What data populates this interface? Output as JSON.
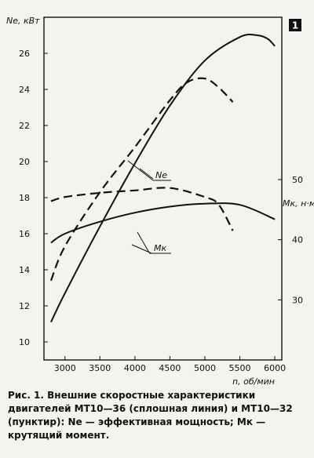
{
  "figure_number": "1",
  "caption": "Рис. 1. Внешние скоростные характеристики двигателей МТ10—36 (сплошная линия) и МТ10—32 (пунктир): Ne — эффективная мощность; Мк — крутящий момент.",
  "chart_data": {
    "type": "line",
    "title": "",
    "xlabel": "n, об/мин",
    "ylabel": "Ne, кВт",
    "y2label": "Мк, н·м",
    "xlim": [
      2700,
      6100
    ],
    "ylim": [
      9,
      28
    ],
    "y2lim": [
      20,
      77
    ],
    "x_ticks": [
      3000,
      3500,
      4000,
      4500,
      5000,
      5500,
      6000
    ],
    "y_ticks": [
      10,
      12,
      14,
      16,
      18,
      20,
      22,
      24,
      26
    ],
    "y2_ticks": [
      30,
      40,
      50
    ],
    "grid": false,
    "legend": "none",
    "series": [
      {
        "engine": "МТ10—36",
        "quantity": "Ne",
        "axis": "left",
        "style": "solid",
        "x": [
          2800,
          3000,
          3500,
          4000,
          4500,
          5000,
          5500,
          5750,
          5900,
          6000
        ],
        "y": [
          11.1,
          12.7,
          16.4,
          19.9,
          23.1,
          25.6,
          26.9,
          27.0,
          26.8,
          26.4
        ]
      },
      {
        "engine": "МТ10—32",
        "quantity": "Ne",
        "axis": "left",
        "style": "dashed",
        "x": [
          2800,
          3000,
          3500,
          4000,
          4500,
          4750,
          5000,
          5200,
          5400
        ],
        "y": [
          13.4,
          15.3,
          18.3,
          20.8,
          23.4,
          24.4,
          24.6,
          24.1,
          23.3
        ]
      },
      {
        "engine": "МТ10—36",
        "quantity": "Мк",
        "axis": "right",
        "style": "solid",
        "x": [
          2800,
          3000,
          3500,
          4000,
          4500,
          5000,
          5500,
          6000
        ],
        "y": [
          39.5,
          41.0,
          43.0,
          44.5,
          45.5,
          46.0,
          45.8,
          43.4
        ]
      },
      {
        "engine": "МТ10—32",
        "quantity": "Мк",
        "axis": "right",
        "style": "dashed",
        "x": [
          2800,
          3000,
          3500,
          4000,
          4500,
          5000,
          5200,
          5400
        ],
        "y": [
          46.4,
          47.1,
          47.8,
          48.2,
          48.6,
          47.1,
          45.8,
          41.5
        ]
      }
    ],
    "annotations": [
      {
        "text": "Ne"
      },
      {
        "text": "Мк"
      }
    ]
  }
}
